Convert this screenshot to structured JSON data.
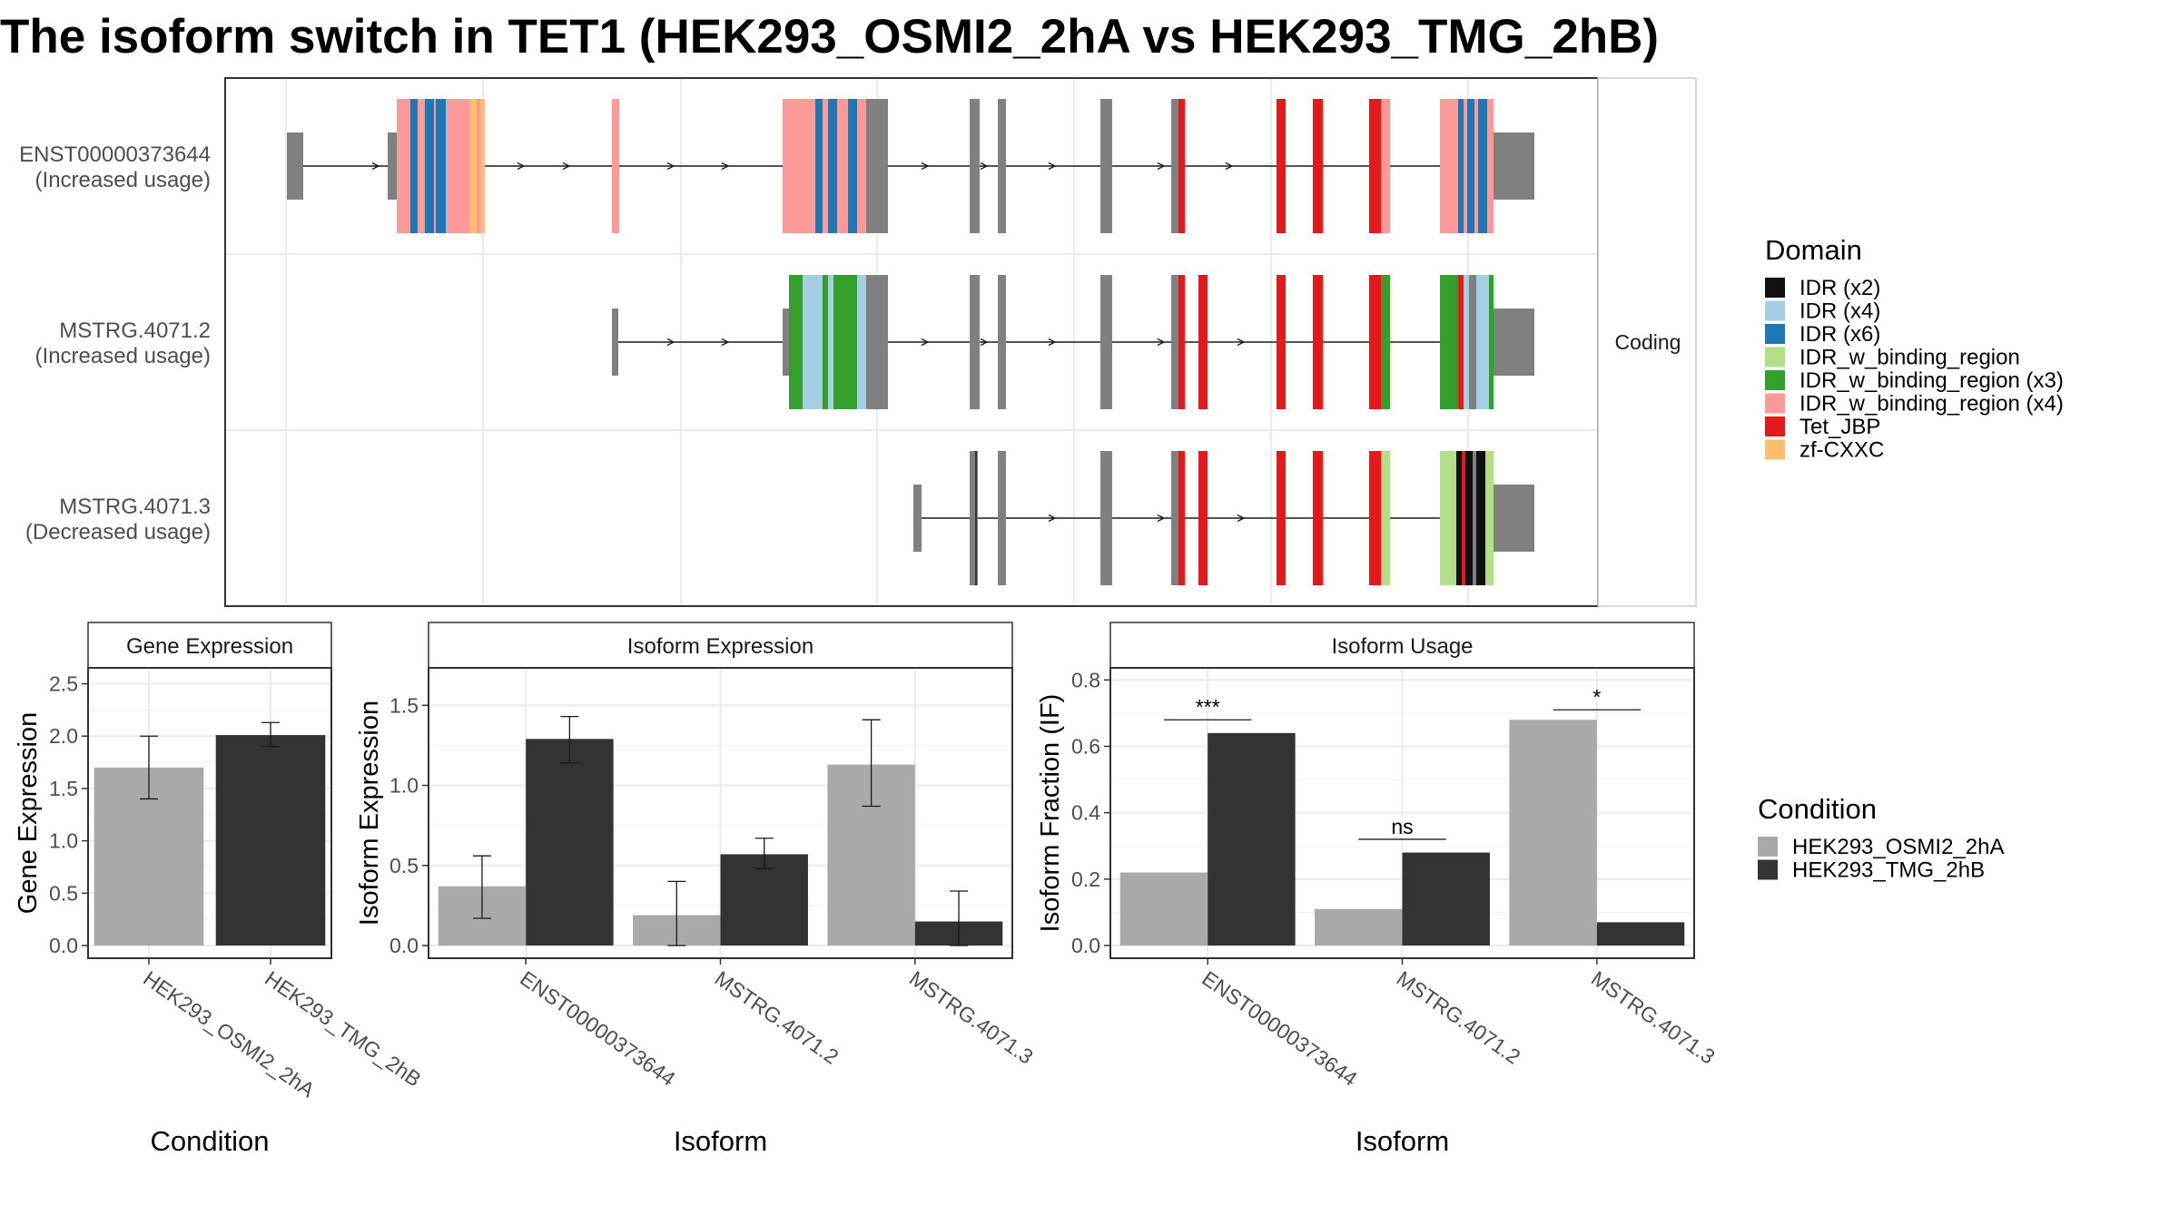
{
  "title": "The isoform switch in TET1 (HEK293_OSMI2_2hA vs HEK293_TMG_2hB)",
  "colors": {
    "condition_a": "#A9A9A9",
    "condition_b": "#333333",
    "intron_exon": "#808080",
    "IDR (x2)": "#111111",
    "IDR (x4)": "#A6CEE3",
    "IDR (x6)": "#1F78B4",
    "IDR_w_binding_region": "#B2DF8A",
    "IDR_w_binding_region (x3)": "#33A02C",
    "IDR_w_binding_region (x4)": "#FB9A99",
    "Tet_JBP": "#E31A1C",
    "zf-CXXC": "#FDBF6F"
  },
  "transcript_panel": {
    "strip": "Coding",
    "transcripts": [
      {
        "id": "ENST00000373644",
        "label": "(Increased usage)"
      },
      {
        "id": "MSTRG.4071.2",
        "label": "(Increased usage)"
      },
      {
        "id": "MSTRG.4071.3",
        "label": "(Decreased usage)"
      }
    ]
  },
  "domain_legend": {
    "title": "Domain",
    "items": [
      "IDR (x2)",
      "IDR (x4)",
      "IDR (x6)",
      "IDR_w_binding_region",
      "IDR_w_binding_region (x3)",
      "IDR_w_binding_region (x4)",
      "Tet_JBP",
      "zf-CXXC"
    ]
  },
  "condition_legend": {
    "title": "Condition",
    "items": [
      "HEK293_OSMI2_2hA",
      "HEK293_TMG_2hB"
    ]
  },
  "chart_data": [
    {
      "type": "bar",
      "title": "Gene Expression",
      "xlabel": "Condition",
      "ylabel": "Gene Expression",
      "ylim": [
        0,
        2.6
      ],
      "yticks": [
        0.0,
        0.5,
        1.0,
        1.5,
        2.0,
        2.5
      ],
      "categories": [
        "HEK293_OSMI2_2hA",
        "HEK293_TMG_2hB"
      ],
      "values": [
        1.7,
        2.01
      ],
      "error": [
        [
          1.4,
          2.0
        ],
        [
          1.9,
          2.13
        ]
      ]
    },
    {
      "type": "bar",
      "title": "Isoform Expression",
      "xlabel": "Isoform",
      "ylabel": "Isoform Expression",
      "ylim": [
        0,
        1.7
      ],
      "yticks": [
        0.0,
        0.5,
        1.0,
        1.5
      ],
      "categories": [
        "ENST00000373644",
        "MSTRG.4071.2",
        "MSTRG.4071.3"
      ],
      "series": [
        {
          "name": "HEK293_OSMI2_2hA",
          "values": [
            0.37,
            0.19,
            1.13
          ],
          "error": [
            [
              0.17,
              0.56
            ],
            [
              0.0,
              0.4
            ],
            [
              0.87,
              1.41
            ]
          ]
        },
        {
          "name": "HEK293_TMG_2hB",
          "values": [
            1.29,
            0.57,
            0.15
          ],
          "error": [
            [
              1.14,
              1.43
            ],
            [
              0.48,
              0.67
            ],
            [
              0.0,
              0.34
            ]
          ]
        }
      ]
    },
    {
      "type": "bar",
      "title": "Isoform Usage",
      "xlabel": "Isoform",
      "ylabel": "Isoform Fraction (IF)",
      "ylim": [
        0,
        0.82
      ],
      "yticks": [
        0.0,
        0.2,
        0.4,
        0.6,
        0.8
      ],
      "categories": [
        "ENST00000373644",
        "MSTRG.4071.2",
        "MSTRG.4071.3"
      ],
      "series": [
        {
          "name": "HEK293_OSMI2_2hA",
          "values": [
            0.22,
            0.11,
            0.68
          ]
        },
        {
          "name": "HEK293_TMG_2hB",
          "values": [
            0.64,
            0.28,
            0.07
          ]
        }
      ],
      "significance": [
        "***",
        "ns",
        "*"
      ],
      "significance_y": [
        0.68,
        0.32,
        0.71
      ]
    }
  ]
}
